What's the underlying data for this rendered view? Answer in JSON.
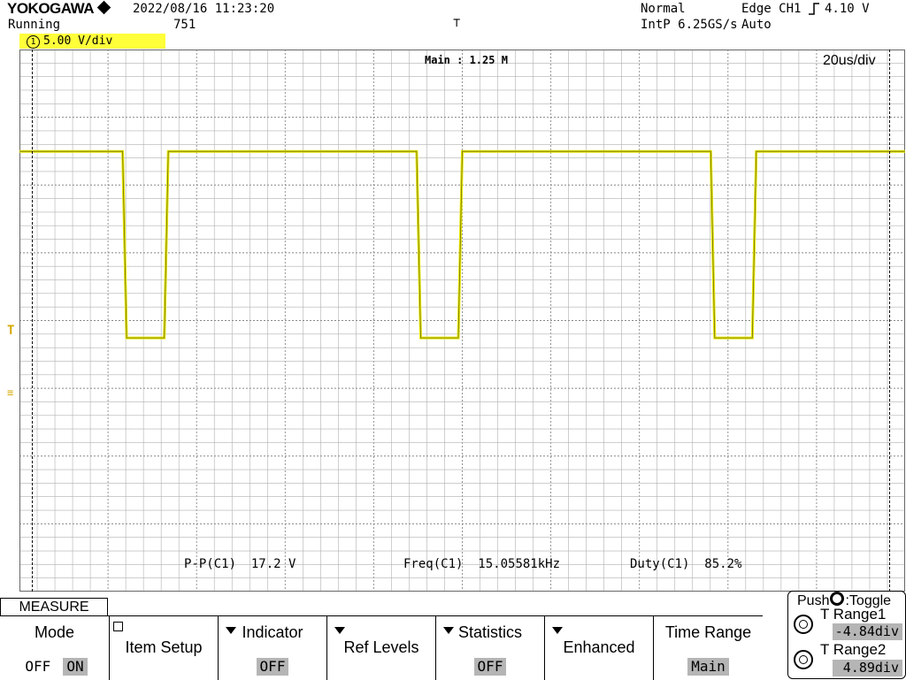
{
  "header": {
    "brand": "YOKOGAWA",
    "status": "Running",
    "datetime": "2022/08/16 11:23:20",
    "count": "751",
    "trigger_mode": "Normal",
    "sample_rate": "IntP 6.25GS/s",
    "trigger_type": "Edge CH1",
    "trigger_level": "4.10 V",
    "trigger_auto": "Auto"
  },
  "channel": {
    "number": "1",
    "scale": "5.00 V/div"
  },
  "screen": {
    "main_length": "Main : 1.25 M",
    "timebase": "20us/div"
  },
  "measurements": [
    {
      "label": "P-P(C1)",
      "value": "17.2 V"
    },
    {
      "label": "Freq(C1)",
      "value": "15.05581kHz"
    },
    {
      "label": "Duty(C1)",
      "value": "85.2%"
    }
  ],
  "menu": {
    "tab": "MEASURE",
    "mode": {
      "title": "Mode",
      "off": "OFF",
      "on": "ON"
    },
    "item_setup": "Item Setup",
    "indicator": {
      "title": "Indicator",
      "value": "OFF"
    },
    "ref_levels": "Ref Levels",
    "statistics": {
      "title": "Statistics",
      "value": "OFF"
    },
    "enhanced": "Enhanced",
    "time_range": {
      "title": "Time Range",
      "value": "Main"
    }
  },
  "range_panel": {
    "header": "Push",
    "toggle": ":Toggle",
    "range1_label": "T Range1",
    "range1_value": "-4.84div",
    "range2_label": "T Range2",
    "range2_value": "4.89div"
  },
  "colors": {
    "trace": "#e8e800",
    "badge": "#ffff3a",
    "grid": "#b0b0b0",
    "value_box": "#b5b5b5"
  },
  "chart_data": {
    "type": "line",
    "title": "",
    "xlabel": "",
    "ylabel": "",
    "x_unit": "us",
    "y_unit": "V",
    "xlim": [
      0,
      200
    ],
    "ylim": [
      -25,
      25
    ],
    "grid": true,
    "series": [
      {
        "x": [
          0,
          23.3,
          24.2,
          32.7,
          33.6,
          89.7,
          90.6,
          99.1,
          100.0,
          156.1,
          157.0,
          165.5,
          166.4,
          200
        ],
        "y": [
          15.6,
          15.6,
          -1.6,
          -1.6,
          15.6,
          15.6,
          -1.6,
          -1.6,
          15.6,
          15.6,
          -1.6,
          -1.6,
          15.6,
          15.6
        ]
      }
    ]
  }
}
